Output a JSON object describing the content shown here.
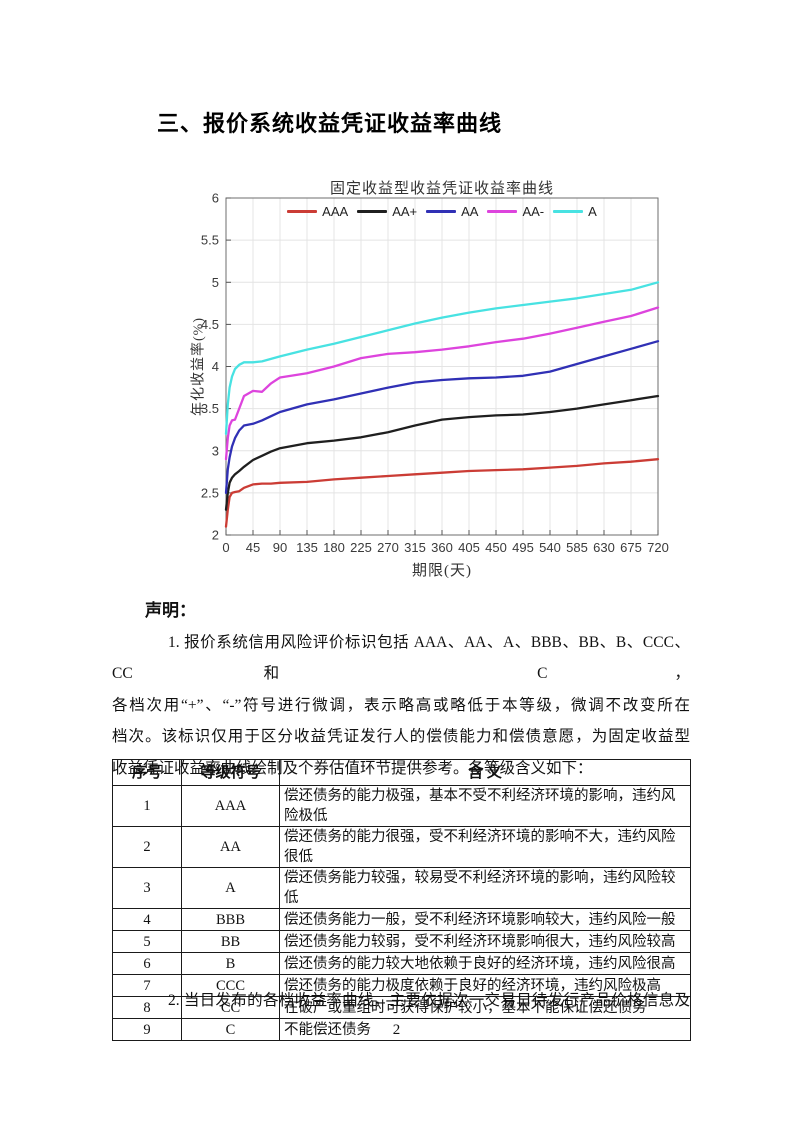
{
  "heading": "三、报价系统收益凭证收益率曲线",
  "declaration": {
    "label": "声明：",
    "para1_lines": [
      "1. 报价系统信用风险评价标识包括 AAA、AA、A、BBB、BB、B、CCC、CC 和 C，",
      "各档次用“+”、“-”符号进行微调，表示略高或略低于本等级，微调不改变所在",
      "档次。该标识仅用于区分收益凭证发行人的偿债能力和偿债意愿，为固定收益型",
      "收益凭证收益率曲线绘制及个券估值环节提供参考。各等级含义如下："
    ],
    "para2": "2. 当日发布的各档收益率曲线，主要依据次一交易日待发行产品价格信息及"
  },
  "table": {
    "headers": [
      "序号",
      "等级符号",
      "含  义"
    ],
    "rows": [
      {
        "no": "1",
        "symbol": "AAA",
        "meaning": "偿还债务的能力极强，基本不受不利经济环境的影响，违约风险极低"
      },
      {
        "no": "2",
        "symbol": "AA",
        "meaning": "偿还债务的能力很强，受不利经济环境的影响不大，违约风险很低"
      },
      {
        "no": "3",
        "symbol": "A",
        "meaning": "偿还债务能力较强，较易受不利经济环境的影响，违约风险较低"
      },
      {
        "no": "4",
        "symbol": "BBB",
        "meaning": "偿还债务能力一般，受不利经济环境影响较大，违约风险一般"
      },
      {
        "no": "5",
        "symbol": "BB",
        "meaning": "偿还债务能力较弱，受不利经济环境影响很大，违约风险较高"
      },
      {
        "no": "6",
        "symbol": "B",
        "meaning": "偿还债务的能力较大地依赖于良好的经济环境，违约风险很高"
      },
      {
        "no": "7",
        "symbol": "CCC",
        "meaning": "偿还债务的能力极度依赖于良好的经济环境，违约风险极高"
      },
      {
        "no": "8",
        "symbol": "CC",
        "meaning": "在破产或重组时可获得保护较小，基本不能保证偿还债务"
      },
      {
        "no": "9",
        "symbol": "C",
        "meaning": "不能偿还债务"
      }
    ]
  },
  "page": {
    "number": "2"
  },
  "chart_data": {
    "type": "line",
    "title": "固定收益型收益凭证收益率曲线",
    "xlabel": "期限(天)",
    "ylabel": "年化收益率(%)",
    "xlim": [
      0,
      720
    ],
    "ylim": [
      2,
      6
    ],
    "xticks": [
      0,
      45,
      90,
      135,
      180,
      225,
      270,
      315,
      360,
      405,
      450,
      495,
      540,
      585,
      630,
      675,
      720
    ],
    "yticks": [
      2,
      2.5,
      3,
      3.5,
      4,
      4.5,
      5,
      5.5,
      6
    ],
    "grid": true,
    "legend_position": "top-center-inside",
    "x": [
      0,
      3,
      6,
      10,
      15,
      22,
      30,
      45,
      60,
      75,
      90,
      135,
      180,
      225,
      270,
      315,
      360,
      405,
      450,
      495,
      540,
      585,
      630,
      675,
      720
    ],
    "series": [
      {
        "name": "AAA",
        "color": "#cb3c35",
        "values": [
          2.1,
          2.3,
          2.45,
          2.5,
          2.51,
          2.52,
          2.56,
          2.6,
          2.61,
          2.61,
          2.62,
          2.63,
          2.66,
          2.68,
          2.7,
          2.72,
          2.74,
          2.76,
          2.77,
          2.78,
          2.8,
          2.82,
          2.85,
          2.87,
          2.9
        ]
      },
      {
        "name": "AA+",
        "color": "#1f1f1f",
        "values": [
          2.3,
          2.5,
          2.62,
          2.68,
          2.72,
          2.76,
          2.81,
          2.89,
          2.94,
          2.99,
          3.03,
          3.09,
          3.12,
          3.16,
          3.22,
          3.3,
          3.37,
          3.4,
          3.42,
          3.43,
          3.46,
          3.5,
          3.55,
          3.6,
          3.65
        ]
      },
      {
        "name": "AA",
        "color": "#3030b5",
        "values": [
          2.5,
          2.78,
          2.92,
          3.05,
          3.15,
          3.24,
          3.3,
          3.32,
          3.36,
          3.41,
          3.46,
          3.55,
          3.61,
          3.68,
          3.75,
          3.81,
          3.84,
          3.86,
          3.87,
          3.89,
          3.94,
          4.03,
          4.12,
          4.21,
          4.3
        ]
      },
      {
        "name": "AA-",
        "color": "#dd44dd",
        "values": [
          2.9,
          3.15,
          3.3,
          3.36,
          3.37,
          3.5,
          3.65,
          3.71,
          3.7,
          3.8,
          3.87,
          3.92,
          4.0,
          4.1,
          4.15,
          4.17,
          4.2,
          4.24,
          4.29,
          4.33,
          4.39,
          4.46,
          4.53,
          4.6,
          4.7
        ]
      },
      {
        "name": "A",
        "color": "#48e2e2",
        "values": [
          3.2,
          3.55,
          3.75,
          3.88,
          3.97,
          4.02,
          4.05,
          4.05,
          4.06,
          4.09,
          4.12,
          4.2,
          4.27,
          4.35,
          4.43,
          4.51,
          4.58,
          4.64,
          4.69,
          4.73,
          4.77,
          4.81,
          4.86,
          4.91,
          5.0
        ]
      }
    ]
  }
}
